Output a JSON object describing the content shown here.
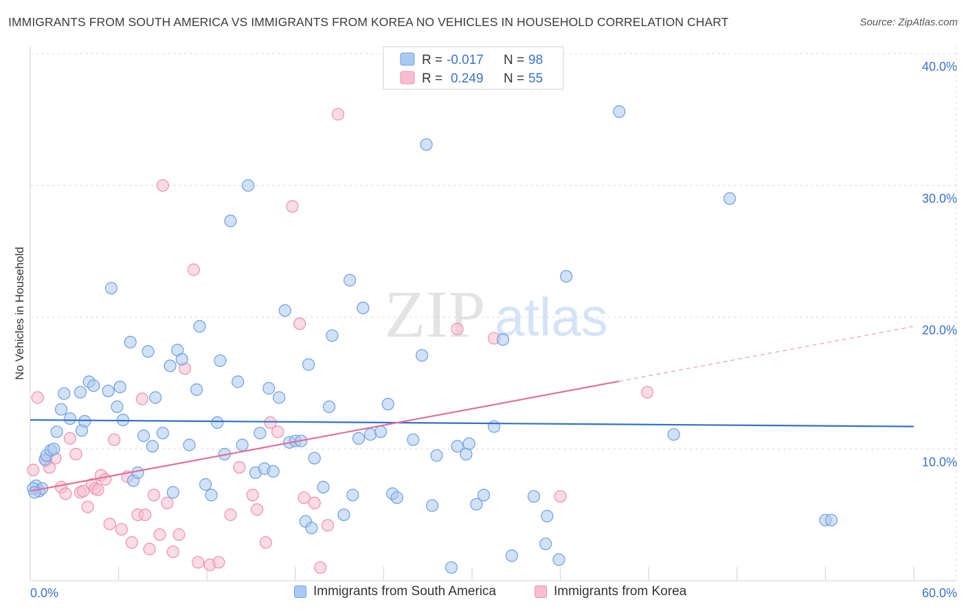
{
  "title": "IMMIGRANTS FROM SOUTH AMERICA VS IMMIGRANTS FROM KOREA NO VEHICLES IN HOUSEHOLD CORRELATION CHART",
  "source": "Source: ZipAtlas.com",
  "watermark": {
    "zip": "ZIP",
    "atlas": "atlas"
  },
  "colors": {
    "blue_fill": "#a9c9f2",
    "blue_stroke": "#6f9fdc",
    "blue_line": "#2f6fc9",
    "pink_fill": "#f7bed0",
    "pink_stroke": "#ec8fb0",
    "pink_line": "#e0709a",
    "value_text": "#3a72c8",
    "grid": "#dcdcdc"
  },
  "legend_top": [
    {
      "r_label": "R =",
      "r_value": "-0.017",
      "n_label": "N =",
      "n_value": "98"
    },
    {
      "r_label": "R =",
      "r_value": "0.249",
      "n_label": "N =",
      "n_value": "55"
    }
  ],
  "chart_data": {
    "type": "scatter",
    "title": "IMMIGRANTS FROM SOUTH AMERICA VS IMMIGRANTS FROM KOREA NO VEHICLES IN HOUSEHOLD CORRELATION CHART",
    "xlabel": "",
    "ylabel": "No Vehicles in Household",
    "xlim": [
      0,
      60
    ],
    "ylim": [
      0,
      40
    ],
    "x_tick_labels": [
      "0.0%",
      "60.0%"
    ],
    "y_ticks": [
      10,
      20,
      30,
      40
    ],
    "y_tick_labels": [
      "10.0%",
      "20.0%",
      "30.0%",
      "40.0%"
    ],
    "grid": true,
    "legend_position": "bottom",
    "series": [
      {
        "name": "Immigrants from South America",
        "trend": {
          "x": [
            0,
            60
          ],
          "y": [
            12.2,
            11.7
          ],
          "dashed_from": null
        },
        "points": [
          [
            0.4,
            7.2
          ],
          [
            0.6,
            6.8
          ],
          [
            0.8,
            7.0
          ],
          [
            1.0,
            9.2
          ],
          [
            1.1,
            9.5
          ],
          [
            1.4,
            9.9
          ],
          [
            1.6,
            10.0
          ],
          [
            1.8,
            11.3
          ],
          [
            2.3,
            14.2
          ],
          [
            2.7,
            12.3
          ],
          [
            2.1,
            13.0
          ],
          [
            3.4,
            14.3
          ],
          [
            3.5,
            11.4
          ],
          [
            3.7,
            12.1
          ],
          [
            4.0,
            15.1
          ],
          [
            4.3,
            14.8
          ],
          [
            5.3,
            14.4
          ],
          [
            5.5,
            22.2
          ],
          [
            6.1,
            14.7
          ],
          [
            5.9,
            13.2
          ],
          [
            6.3,
            12.2
          ],
          [
            6.8,
            18.1
          ],
          [
            7.0,
            7.6
          ],
          [
            7.3,
            8.2
          ],
          [
            7.7,
            11.0
          ],
          [
            8.0,
            17.4
          ],
          [
            8.3,
            10.2
          ],
          [
            8.5,
            13.9
          ],
          [
            9.0,
            11.2
          ],
          [
            9.5,
            16.3
          ],
          [
            9.7,
            6.7
          ],
          [
            10.0,
            17.5
          ],
          [
            10.3,
            16.8
          ],
          [
            10.8,
            10.3
          ],
          [
            11.3,
            14.5
          ],
          [
            11.5,
            19.3
          ],
          [
            11.9,
            7.3
          ],
          [
            12.3,
            6.5
          ],
          [
            12.7,
            12.0
          ],
          [
            12.9,
            16.7
          ],
          [
            13.2,
            9.6
          ],
          [
            13.6,
            27.3
          ],
          [
            14.1,
            15.1
          ],
          [
            14.4,
            10.3
          ],
          [
            14.8,
            30.0
          ],
          [
            15.3,
            8.2
          ],
          [
            15.6,
            11.2
          ],
          [
            15.9,
            8.5
          ],
          [
            16.2,
            14.6
          ],
          [
            16.5,
            8.3
          ],
          [
            16.9,
            13.9
          ],
          [
            17.3,
            20.5
          ],
          [
            17.6,
            10.5
          ],
          [
            18.0,
            10.6
          ],
          [
            18.4,
            10.6
          ],
          [
            18.7,
            4.5
          ],
          [
            18.9,
            16.4
          ],
          [
            19.1,
            4.0
          ],
          [
            19.3,
            9.3
          ],
          [
            19.9,
            7.1
          ],
          [
            20.3,
            13.2
          ],
          [
            20.5,
            18.6
          ],
          [
            21.3,
            5.0
          ],
          [
            21.7,
            22.8
          ],
          [
            21.9,
            6.5
          ],
          [
            22.3,
            10.8
          ],
          [
            22.6,
            20.7
          ],
          [
            23.1,
            11.1
          ],
          [
            23.8,
            11.3
          ],
          [
            24.3,
            13.4
          ],
          [
            24.6,
            6.6
          ],
          [
            24.9,
            6.3
          ],
          [
            26.0,
            10.7
          ],
          [
            26.6,
            17.1
          ],
          [
            26.9,
            33.1
          ],
          [
            27.3,
            5.7
          ],
          [
            27.6,
            9.5
          ],
          [
            28.6,
            1.0
          ],
          [
            29.0,
            10.2
          ],
          [
            29.6,
            9.6
          ],
          [
            29.8,
            10.4
          ],
          [
            30.3,
            5.8
          ],
          [
            30.8,
            6.5
          ],
          [
            31.5,
            11.7
          ],
          [
            32.1,
            18.3
          ],
          [
            32.7,
            1.9
          ],
          [
            34.2,
            6.4
          ],
          [
            35.0,
            2.8
          ],
          [
            35.1,
            4.9
          ],
          [
            35.9,
            1.6
          ],
          [
            36.4,
            23.1
          ],
          [
            40.0,
            35.6
          ],
          [
            43.7,
            11.1
          ],
          [
            47.5,
            29.0
          ],
          [
            54.0,
            4.6
          ],
          [
            54.4,
            4.6
          ],
          [
            0.2,
            7.0
          ],
          [
            0.3,
            6.7
          ]
        ]
      },
      {
        "name": "Immigrants from Korea",
        "trend": {
          "x": [
            0,
            60
          ],
          "y": [
            6.8,
            19.3
          ],
          "dashed_from": 40
        },
        "points": [
          [
            0.2,
            8.4
          ],
          [
            0.5,
            13.9
          ],
          [
            1.1,
            9.1
          ],
          [
            1.3,
            8.6
          ],
          [
            1.7,
            9.3
          ],
          [
            2.1,
            7.1
          ],
          [
            2.4,
            6.6
          ],
          [
            2.7,
            10.8
          ],
          [
            3.1,
            9.6
          ],
          [
            3.4,
            6.7
          ],
          [
            3.6,
            6.8
          ],
          [
            3.9,
            5.6
          ],
          [
            4.2,
            7.3
          ],
          [
            4.4,
            7.0
          ],
          [
            4.6,
            6.9
          ],
          [
            4.8,
            8.0
          ],
          [
            5.1,
            7.7
          ],
          [
            5.4,
            4.3
          ],
          [
            5.7,
            10.7
          ],
          [
            6.2,
            3.9
          ],
          [
            6.6,
            7.9
          ],
          [
            6.9,
            2.9
          ],
          [
            7.3,
            5.0
          ],
          [
            7.6,
            13.8
          ],
          [
            7.8,
            5.0
          ],
          [
            8.1,
            2.4
          ],
          [
            8.4,
            6.5
          ],
          [
            8.8,
            3.5
          ],
          [
            9.0,
            30.0
          ],
          [
            9.3,
            5.9
          ],
          [
            9.7,
            2.2
          ],
          [
            10.1,
            3.5
          ],
          [
            10.5,
            16.1
          ],
          [
            11.1,
            23.6
          ],
          [
            11.4,
            1.4
          ],
          [
            12.2,
            1.2
          ],
          [
            12.8,
            1.4
          ],
          [
            13.6,
            5.0
          ],
          [
            14.2,
            8.6
          ],
          [
            15.1,
            6.5
          ],
          [
            15.4,
            5.4
          ],
          [
            16.0,
            2.9
          ],
          [
            16.3,
            12.0
          ],
          [
            16.8,
            11.3
          ],
          [
            17.8,
            28.4
          ],
          [
            18.3,
            19.5
          ],
          [
            18.6,
            6.3
          ],
          [
            19.3,
            5.9
          ],
          [
            19.7,
            1.0
          ],
          [
            20.2,
            4.2
          ],
          [
            20.9,
            35.4
          ],
          [
            29.0,
            19.1
          ],
          [
            31.5,
            18.4
          ],
          [
            36.0,
            6.4
          ],
          [
            41.9,
            14.3
          ]
        ]
      }
    ]
  },
  "legend_bottom": [
    {
      "label": "Immigrants from South America"
    },
    {
      "label": "Immigrants from Korea"
    }
  ]
}
